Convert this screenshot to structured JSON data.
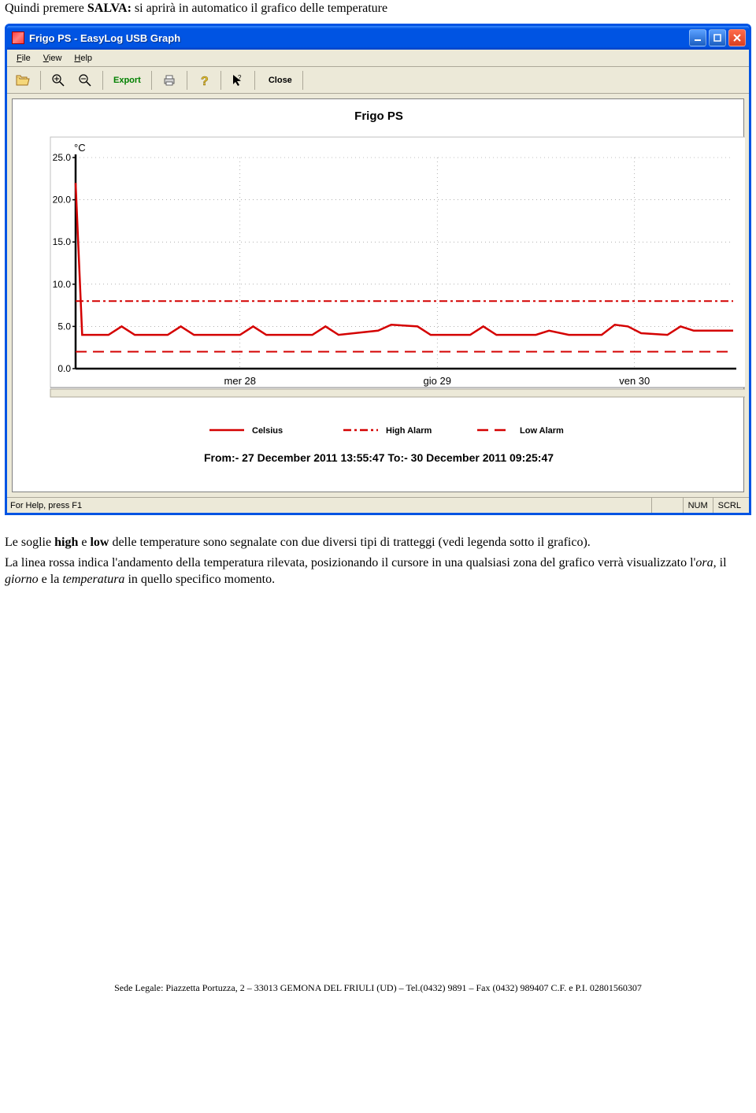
{
  "intro": {
    "prefix": "Quindi premere ",
    "bold": "SALVA:",
    "suffix": " si aprirà in automatico il grafico delle temperature"
  },
  "window": {
    "title": "Frigo PS  -  EasyLog USB Graph",
    "menu": {
      "file": "File",
      "view": "View",
      "help": "Help"
    },
    "toolbar": {
      "export": "Export",
      "close": "Close"
    },
    "chart": {
      "title": "Frigo PS",
      "title_fontsize": 15,
      "y_unit": "°C",
      "ylim": [
        0,
        25
      ],
      "ytick_step": 5,
      "ytick_labels": [
        "0.0",
        "5.0",
        "10.0",
        "15.0",
        "20.0",
        "25.0"
      ],
      "x_labels": [
        "mer 28",
        "gio 29",
        "ven 30"
      ],
      "x_positions": [
        0.25,
        0.55,
        0.85
      ],
      "high_alarm_value": 8,
      "low_alarm_value": 2,
      "series_color": "#d40000",
      "high_alarm_color": "#d40000",
      "low_alarm_color": "#d40000",
      "axis_color": "#000000",
      "grid_color": "#808080",
      "background_color": "#ffffff",
      "plot_bg": "#ffffff",
      "panel_shadow": "#c0c0c0",
      "data_points": [
        {
          "x": 0.0,
          "y": 22.0
        },
        {
          "x": 0.01,
          "y": 4.0
        },
        {
          "x": 0.05,
          "y": 4.0
        },
        {
          "x": 0.07,
          "y": 5.0
        },
        {
          "x": 0.09,
          "y": 4.0
        },
        {
          "x": 0.14,
          "y": 4.0
        },
        {
          "x": 0.16,
          "y": 5.0
        },
        {
          "x": 0.18,
          "y": 4.0
        },
        {
          "x": 0.25,
          "y": 4.0
        },
        {
          "x": 0.27,
          "y": 5.0
        },
        {
          "x": 0.29,
          "y": 4.0
        },
        {
          "x": 0.36,
          "y": 4.0
        },
        {
          "x": 0.38,
          "y": 5.0
        },
        {
          "x": 0.4,
          "y": 4.0
        },
        {
          "x": 0.46,
          "y": 4.5
        },
        {
          "x": 0.48,
          "y": 5.2
        },
        {
          "x": 0.52,
          "y": 5.0
        },
        {
          "x": 0.54,
          "y": 4.0
        },
        {
          "x": 0.6,
          "y": 4.0
        },
        {
          "x": 0.62,
          "y": 5.0
        },
        {
          "x": 0.64,
          "y": 4.0
        },
        {
          "x": 0.7,
          "y": 4.0
        },
        {
          "x": 0.72,
          "y": 4.5
        },
        {
          "x": 0.75,
          "y": 4.0
        },
        {
          "x": 0.8,
          "y": 4.0
        },
        {
          "x": 0.82,
          "y": 5.2
        },
        {
          "x": 0.84,
          "y": 5.0
        },
        {
          "x": 0.86,
          "y": 4.2
        },
        {
          "x": 0.9,
          "y": 4.0
        },
        {
          "x": 0.92,
          "y": 5.0
        },
        {
          "x": 0.94,
          "y": 4.5
        },
        {
          "x": 0.97,
          "y": 4.5
        },
        {
          "x": 1.0,
          "y": 4.5
        }
      ],
      "legend": {
        "celsius": "Celsius",
        "high": "High Alarm",
        "low": "Low Alarm"
      }
    },
    "date_range": {
      "from_label": "From:-",
      "from_value": "  27 December 2011 13:55:47",
      "to_label": "To:-",
      "to_value": "  30 December 2011 09:25:47"
    },
    "status": {
      "help": "For Help, press F1",
      "num": "NUM",
      "scrl": "SCRL"
    }
  },
  "body": {
    "para1_a": "Le soglie ",
    "para1_b": "high",
    "para1_c": " e ",
    "para1_d": "low",
    "para1_e": " delle temperature sono segnalate con due diversi tipi di tratteggi  (vedi legenda sotto il grafico).",
    "para2_a": "La linea rossa indica l'andamento della temperatura rilevata, posizionando il cursore in una qualsiasi zona del grafico verrà visualizzato l'",
    "para2_b": "ora",
    "para2_c": ", il ",
    "para2_d": "giorno",
    "para2_e": " e la ",
    "para2_f": "temperatura",
    "para2_g": " in quello specifico momento."
  },
  "footer": "Sede Legale: Piazzetta Portuzza, 2 – 33013 GEMONA DEL FRIULI (UD) – Tel.(0432) 9891 – Fax (0432) 989407 C.F. e P.I. 02801560307"
}
